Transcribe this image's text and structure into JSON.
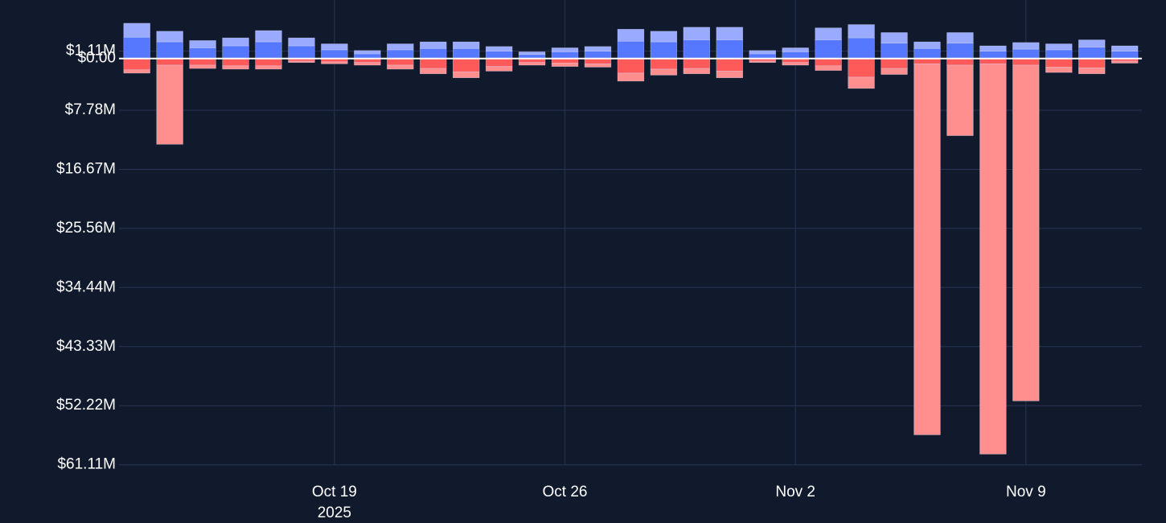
{
  "chart_data": {
    "type": "bar",
    "stacked": true,
    "x": [
      "2025-10-13",
      "2025-10-14",
      "2025-10-15",
      "2025-10-16",
      "2025-10-17",
      "2025-10-18",
      "2025-10-19",
      "2025-10-20",
      "2025-10-21",
      "2025-10-22",
      "2025-10-23",
      "2025-10-24",
      "2025-10-25",
      "2025-10-26",
      "2025-10-27",
      "2025-10-28",
      "2025-10-29",
      "2025-10-30",
      "2025-10-31",
      "2025-11-01",
      "2025-11-02",
      "2025-11-03",
      "2025-11-04",
      "2025-11-05",
      "2025-11-06",
      "2025-11-07",
      "2025-11-08",
      "2025-11-09",
      "2025-11-10",
      "2025-11-11",
      "2025-11-12"
    ],
    "series": [
      {
        "color": "#5677ff",
        "values": [
          3.2,
          2.5,
          1.6,
          1.9,
          2.5,
          1.9,
          1.3,
          0.7,
          1.3,
          1.5,
          1.5,
          1.1,
          0.6,
          1.0,
          1.1,
          2.6,
          2.5,
          2.8,
          2.8,
          0.7,
          1.0,
          2.8,
          3.1,
          2.3,
          1.5,
          2.3,
          1.1,
          1.4,
          1.3,
          1.7,
          1.1
        ]
      },
      {
        "color": "#9aabff",
        "values": [
          2.1,
          1.6,
          1.1,
          1.2,
          1.7,
          1.2,
          0.9,
          0.5,
          0.9,
          1.0,
          1.0,
          0.7,
          0.4,
          0.6,
          0.7,
          1.8,
          1.6,
          1.9,
          1.9,
          0.5,
          0.6,
          1.8,
          2.0,
          1.6,
          1.0,
          1.6,
          0.8,
          1.0,
          0.9,
          1.1,
          0.8
        ]
      },
      {
        "color": "#ff5a5a",
        "values": [
          -1.7,
          -1.0,
          -1.0,
          -1.1,
          -1.1,
          -0.4,
          -0.5,
          -0.6,
          -1.0,
          -1.5,
          -2.0,
          -1.2,
          -0.6,
          -0.7,
          -0.8,
          -2.2,
          -1.6,
          -1.5,
          -1.9,
          -0.4,
          -0.6,
          -1.1,
          -2.8,
          -1.5,
          -0.8,
          -1.0,
          -0.8,
          -1.0,
          -1.3,
          -1.4,
          -0.4
        ]
      },
      {
        "color": "#ff8f8f",
        "values": [
          -0.5,
          -11.9,
          -0.5,
          -0.5,
          -0.5,
          -0.2,
          -0.3,
          -0.4,
          -0.6,
          -0.8,
          -0.9,
          -0.7,
          -0.4,
          -0.5,
          -0.5,
          -1.2,
          -0.9,
          -0.8,
          -1.0,
          -0.2,
          -0.4,
          -0.7,
          -1.7,
          -0.9,
          -55.8,
          -10.6,
          -58.7,
          -50.5,
          -0.8,
          -0.9,
          -0.3
        ]
      }
    ],
    "ylim": [
      8.8,
      -62.6
    ],
    "yticks": [
      {
        "value": 1.11,
        "label": "$1.11M"
      },
      {
        "value": 0,
        "label": "$0.00"
      },
      {
        "value": -7.78,
        "label": "$7.78M"
      },
      {
        "value": -16.67,
        "label": "$16.67M"
      },
      {
        "value": -25.56,
        "label": "$25.56M"
      },
      {
        "value": -34.44,
        "label": "$34.44M"
      },
      {
        "value": -43.33,
        "label": "$43.33M"
      },
      {
        "value": -52.22,
        "label": "$52.22M"
      },
      {
        "value": -61.11,
        "label": "$61.11M"
      }
    ],
    "xlim": [
      "2025-10-12T11:00",
      "2025-11-12T12:30"
    ],
    "xticks": [
      {
        "value": "2025-10-19",
        "label": "Oct 19",
        "sublabel": "2025"
      },
      {
        "value": "2025-10-26",
        "label": "Oct 26"
      },
      {
        "value": "2025-11-02",
        "label": "Nov 2"
      },
      {
        "value": "2025-11-09",
        "label": "Nov 9"
      }
    ],
    "grid": true
  }
}
